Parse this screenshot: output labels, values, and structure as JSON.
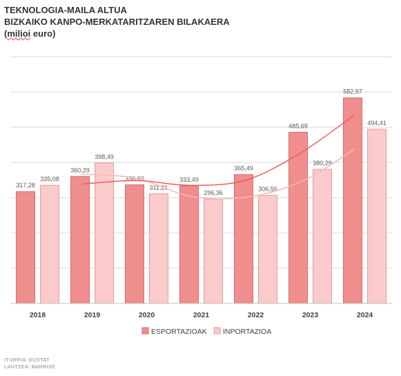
{
  "header": {
    "title_line1": "TEKNOLOGIA-MAILA ALTUA",
    "title_line2": "BIZKAIKO KANPO-MERKATARITZAREN BILAKAERA",
    "unit_prefix": "(",
    "unit_word": "milioi",
    "unit_suffix": " euro)"
  },
  "footer": {
    "source": "ITURRIA: EUSTAT",
    "author": "LANTZEA: BARRIXE"
  },
  "colors": {
    "export_bar": "#f08e8e",
    "export_line": "#ee5d5d",
    "import_bar": "#fbcaca",
    "import_line": "#f8b7b7",
    "grid": "#d9d9d9",
    "label_text": "#595959"
  },
  "chart_data": {
    "type": "bar",
    "title": "TEKNOLOGIA-MAILA ALTUA",
    "categories": [
      "2018",
      "2019",
      "2020",
      "2021",
      "2022",
      "2023",
      "2024"
    ],
    "series": [
      {
        "name": "ESPORTAZIOAK",
        "values": [
          317.28,
          360.29,
          336.6,
          333.49,
          365.49,
          485.69,
          582.97
        ],
        "labels": [
          "317,28",
          "360,29",
          "336,60",
          "333,49",
          "365,49",
          "485,69",
          "582,97"
        ]
      },
      {
        "name": "INPORTAZIOA",
        "values": [
          335.08,
          398.49,
          311.21,
          296.36,
          306.56,
          380.29,
          494.41
        ],
        "labels": [
          "335,08",
          "398,49",
          "311,21",
          "296,36",
          "306,56",
          "380,29",
          "494,41"
        ]
      }
    ],
    "trendlines": true,
    "ylim": [
      0,
      700
    ],
    "grid": true,
    "legend_position": "bottom"
  }
}
